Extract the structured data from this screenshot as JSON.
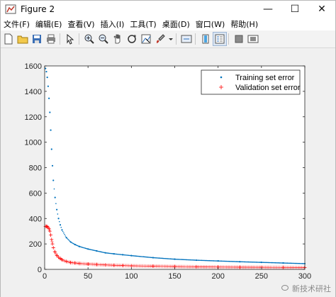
{
  "window": {
    "title": "Figure 2",
    "minimize_glyph": "—",
    "maximize_glyph": "☐",
    "close_glyph": "✕"
  },
  "menu": [
    "文件(F)",
    "编辑(E)",
    "查看(V)",
    "插入(I)",
    "工具(T)",
    "桌面(D)",
    "窗口(W)",
    "帮助(H)"
  ],
  "toolbar": {
    "icons": [
      "new-figure-icon",
      "open-file-icon",
      "save-icon",
      "print-icon",
      "pointer-icon",
      "zoom-in-icon",
      "zoom-out-icon",
      "pan-icon",
      "rotate-3d-icon",
      "data-cursor-icon",
      "brush-icon",
      "link-plot-icon",
      "colorbar-icon",
      "legend-icon",
      "hide-plot-tools-icon",
      "show-plot-tools-icon"
    ]
  },
  "watermark": "新技术研社",
  "chart_data": {
    "type": "line",
    "title": "",
    "xlabel": "",
    "ylabel": "",
    "xlim": [
      0,
      300
    ],
    "ylim": [
      0,
      1600
    ],
    "xticks": [
      0,
      50,
      100,
      150,
      200,
      250,
      300
    ],
    "yticks": [
      0,
      200,
      400,
      600,
      800,
      1000,
      1200,
      1400,
      1600
    ],
    "legend_position": "top-right",
    "series": [
      {
        "name": "Training set error",
        "marker": "dot",
        "color": "#0072bd",
        "x": [
          1,
          2,
          3,
          4,
          5,
          6,
          7,
          8,
          9,
          10,
          12,
          14,
          16,
          18,
          20,
          25,
          30,
          35,
          40,
          50,
          60,
          70,
          80,
          90,
          100,
          125,
          150,
          175,
          200,
          225,
          250,
          275,
          300
        ],
        "y": [
          1580,
          1555,
          1510,
          1440,
          1345,
          1235,
          1095,
          945,
          815,
          700,
          565,
          470,
          400,
          350,
          310,
          250,
          215,
          195,
          180,
          160,
          145,
          130,
          122,
          115,
          108,
          92,
          80,
          72,
          66,
          60,
          55,
          50,
          45
        ]
      },
      {
        "name": "Validation set error",
        "marker": "plus",
        "color": "#ff0000",
        "x": [
          1,
          2,
          3,
          4,
          5,
          6,
          7,
          8,
          9,
          10,
          12,
          14,
          16,
          18,
          20,
          25,
          30,
          35,
          40,
          50,
          60,
          70,
          80,
          90,
          100,
          125,
          150,
          175,
          200,
          225,
          250,
          275,
          300
        ],
        "y": [
          338,
          338,
          336,
          330,
          320,
          300,
          270,
          235,
          200,
          170,
          135,
          110,
          95,
          85,
          75,
          62,
          54,
          50,
          46,
          42,
          38,
          35,
          32,
          30,
          28,
          25,
          22,
          20,
          18,
          17,
          16,
          15,
          14
        ]
      }
    ]
  }
}
